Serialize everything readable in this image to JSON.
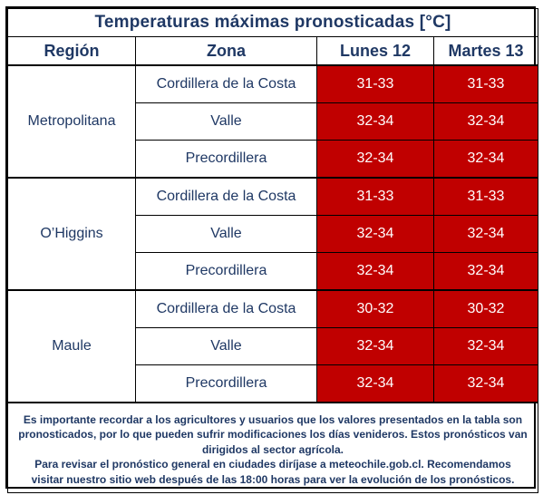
{
  "title": "Temperaturas máximas pronosticadas [°C]",
  "headers": {
    "region": "Región",
    "zone": "Zona",
    "day1": "Lunes 12",
    "day2": "Martes 13"
  },
  "accent_color": "#c00000",
  "text_color": "#1f3864",
  "regions": [
    {
      "name": "Metropolitana",
      "rows": [
        {
          "zone": "Cordillera de la Costa",
          "day1": "31-33",
          "day2": "31-33"
        },
        {
          "zone": "Valle",
          "day1": "32-34",
          "day2": "32-34"
        },
        {
          "zone": "Precordillera",
          "day1": "32-34",
          "day2": "32-34"
        }
      ]
    },
    {
      "name": "O’Higgins",
      "rows": [
        {
          "zone": "Cordillera de la Costa",
          "day1": "31-33",
          "day2": "31-33"
        },
        {
          "zone": "Valle",
          "day1": "32-34",
          "day2": "32-34"
        },
        {
          "zone": "Precordillera",
          "day1": "32-34",
          "day2": "32-34"
        }
      ]
    },
    {
      "name": "Maule",
      "rows": [
        {
          "zone": "Cordillera de la Costa",
          "day1": "30-32",
          "day2": "30-32"
        },
        {
          "zone": "Valle",
          "day1": "32-34",
          "day2": "32-34"
        },
        {
          "zone": "Precordillera",
          "day1": "32-34",
          "day2": "32-34"
        }
      ]
    }
  ],
  "notes": {
    "paragraph1": "Es importante recordar a los agricultores y usuarios que los valores presentados en la tabla son pronosticados, por lo que pueden sufrir modificaciones los días venideros. Estos pronósticos van dirigidos al sector agrícola.",
    "paragraph2": "Para revisar el pronóstico general en ciudades diríjase a meteochile.gob.cl. Recomendamos visitar nuestro sitio web después de las 18:00 horas para ver la evolución de los pronósticos."
  }
}
